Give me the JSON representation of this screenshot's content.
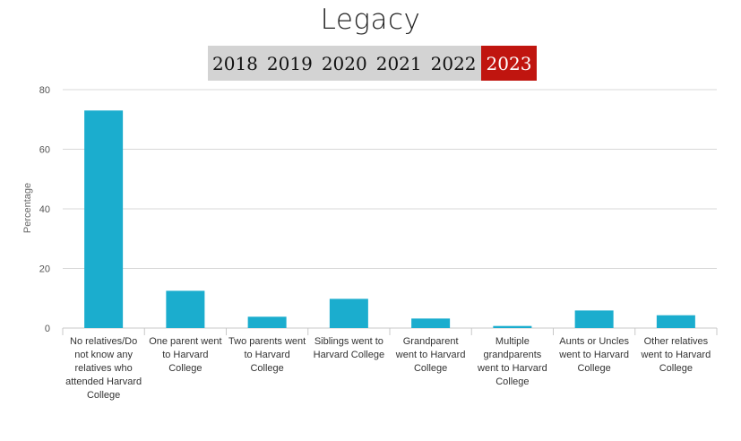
{
  "header": {
    "title": "Legacy"
  },
  "year_tabs": [
    {
      "label": "2018",
      "active": false
    },
    {
      "label": "2019",
      "active": false
    },
    {
      "label": "2020",
      "active": false
    },
    {
      "label": "2021",
      "active": false
    },
    {
      "label": "2022",
      "active": false
    },
    {
      "label": "2023",
      "active": true
    }
  ],
  "colors": {
    "bar": "#1badce",
    "active_tab": "#c0150f",
    "tab_bg": "#d3d3d3",
    "grid": "#d8d8d8"
  },
  "chart_data": {
    "type": "bar",
    "title": "Legacy",
    "xlabel": "",
    "ylabel": "Percentage",
    "ylim": [
      0,
      80
    ],
    "yticks": [
      0,
      20,
      40,
      60,
      80
    ],
    "grid": true,
    "categories": [
      "No relatives/Do not know any relatives who attended Harvard College",
      "One parent went to Harvard College",
      "Two parents went to Harvard College",
      "Siblings went to Harvard College",
      "Grandparent went to Harvard College",
      "Multiple grandparents went to Harvard College",
      "Aunts or Uncles went to Harvard College",
      "Other relatives went to Harvard College"
    ],
    "values": [
      73,
      12.5,
      3.8,
      9.8,
      3.2,
      0.7,
      5.9,
      4.3
    ]
  }
}
